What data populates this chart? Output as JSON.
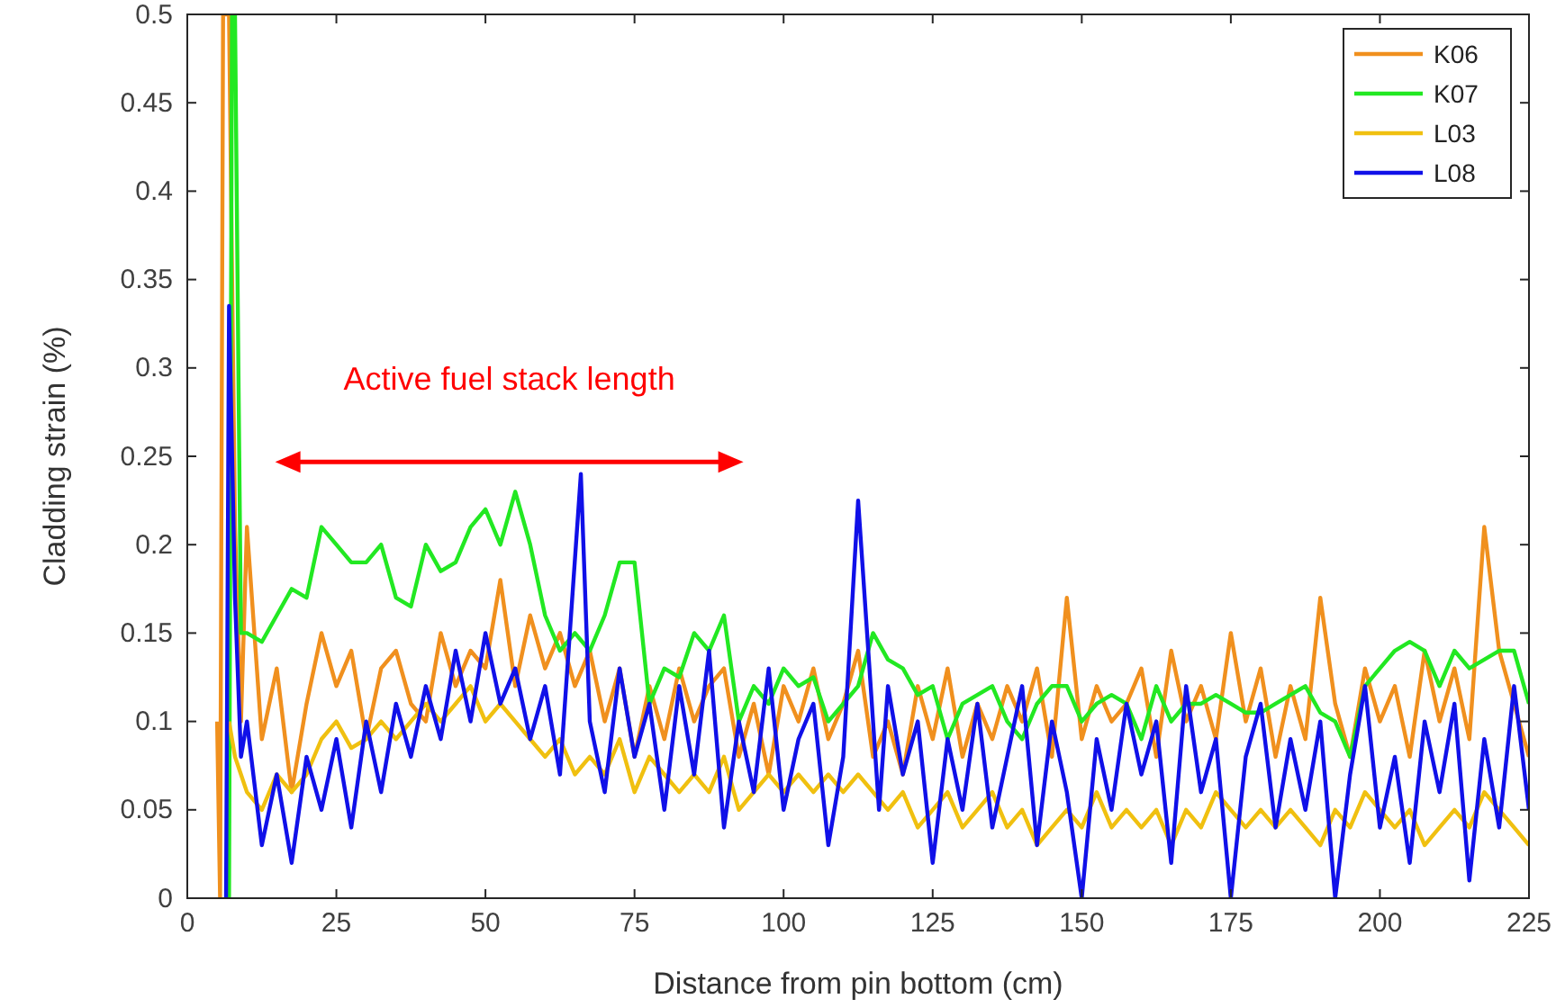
{
  "chart_data": {
    "type": "line",
    "xlabel": "Distance from pin bottom (cm)",
    "ylabel": "Cladding strain (%)",
    "xlim": [
      0,
      225
    ],
    "xticks": [
      0,
      25,
      50,
      75,
      100,
      125,
      150,
      175,
      200,
      225
    ],
    "ylim": [
      0,
      0.5
    ],
    "yticks": [
      0,
      0.05,
      0.1,
      0.15,
      0.2,
      0.25,
      0.3,
      0.35,
      0.4,
      0.45,
      0.5
    ],
    "grid": false,
    "legend": "top right",
    "line_style": "solid",
    "marker": "none",
    "annotations": [
      "Active fuel stack length"
    ],
    "series": [
      {
        "name": "K06",
        "color": "#f0901e",
        "x": [
          5,
          5.5,
          6,
          7,
          8,
          9,
          10,
          12.5,
          15,
          17.5,
          20,
          22.5,
          25,
          27.5,
          30,
          32.5,
          35,
          37.5,
          40,
          42.5,
          45,
          47.5,
          50,
          52.5,
          55,
          57.5,
          60,
          62.5,
          65,
          67.5,
          70,
          72.5,
          75,
          77.5,
          80,
          82.5,
          85,
          87.5,
          90,
          92.5,
          95,
          97.5,
          100,
          102.5,
          105,
          107.5,
          110,
          112.5,
          115,
          117.5,
          120,
          122.5,
          125,
          127.5,
          130,
          132.5,
          135,
          137.5,
          140,
          142.5,
          145,
          147.5,
          150,
          152.5,
          155,
          157.5,
          160,
          162.5,
          165,
          167.5,
          170,
          172.5,
          175,
          177.5,
          180,
          182.5,
          185,
          187.5,
          190,
          192.5,
          195,
          197.5,
          200,
          202.5,
          205,
          207.5,
          210,
          212.5,
          215,
          217.5,
          220,
          222.5,
          225
        ],
        "values": [
          0.1,
          0,
          0.5,
          0.5,
          0.21,
          0.1,
          0.21,
          0.09,
          0.13,
          0.06,
          0.11,
          0.15,
          0.12,
          0.14,
          0.09,
          0.13,
          0.14,
          0.11,
          0.1,
          0.15,
          0.12,
          0.14,
          0.13,
          0.18,
          0.12,
          0.16,
          0.13,
          0.15,
          0.12,
          0.14,
          0.1,
          0.13,
          0.08,
          0.12,
          0.09,
          0.13,
          0.1,
          0.12,
          0.13,
          0.08,
          0.11,
          0.07,
          0.12,
          0.1,
          0.13,
          0.09,
          0.11,
          0.14,
          0.08,
          0.1,
          0.07,
          0.12,
          0.09,
          0.13,
          0.08,
          0.11,
          0.09,
          0.12,
          0.1,
          0.13,
          0.08,
          0.17,
          0.09,
          0.12,
          0.1,
          0.11,
          0.13,
          0.08,
          0.14,
          0.1,
          0.12,
          0.09,
          0.15,
          0.1,
          0.13,
          0.08,
          0.12,
          0.09,
          0.17,
          0.11,
          0.08,
          0.13,
          0.1,
          0.12,
          0.08,
          0.14,
          0.1,
          0.13,
          0.09,
          0.21,
          0.14,
          0.11,
          0.08
        ]
      },
      {
        "name": "K07",
        "color": "#22e822",
        "x": [
          7,
          7.5,
          8,
          9,
          10,
          12.5,
          15,
          17.5,
          20,
          22.5,
          25,
          27.5,
          30,
          32.5,
          35,
          37.5,
          40,
          42.5,
          45,
          47.5,
          50,
          52.5,
          55,
          57.5,
          60,
          62.5,
          65,
          67.5,
          70,
          72.5,
          75,
          77.5,
          80,
          82.5,
          85,
          87.5,
          90,
          92.5,
          95,
          97.5,
          100,
          102.5,
          105,
          107.5,
          110,
          112.5,
          115,
          117.5,
          120,
          122.5,
          125,
          127.5,
          130,
          132.5,
          135,
          137.5,
          140,
          142.5,
          145,
          147.5,
          150,
          152.5,
          155,
          157.5,
          160,
          162.5,
          165,
          167.5,
          170,
          172.5,
          175,
          177.5,
          180,
          182.5,
          185,
          187.5,
          190,
          192.5,
          195,
          197.5,
          200,
          202.5,
          205,
          207.5,
          210,
          212.5,
          215,
          217.5,
          220,
          222.5,
          225
        ],
        "values": [
          0,
          0.5,
          0.5,
          0.15,
          0.15,
          0.145,
          0.16,
          0.175,
          0.17,
          0.21,
          0.2,
          0.19,
          0.19,
          0.2,
          0.17,
          0.165,
          0.2,
          0.185,
          0.19,
          0.21,
          0.22,
          0.2,
          0.23,
          0.2,
          0.16,
          0.14,
          0.15,
          0.14,
          0.16,
          0.19,
          0.19,
          0.11,
          0.13,
          0.125,
          0.15,
          0.14,
          0.16,
          0.1,
          0.12,
          0.11,
          0.13,
          0.12,
          0.125,
          0.1,
          0.11,
          0.12,
          0.15,
          0.135,
          0.13,
          0.115,
          0.12,
          0.09,
          0.11,
          0.115,
          0.12,
          0.1,
          0.09,
          0.11,
          0.12,
          0.12,
          0.1,
          0.11,
          0.115,
          0.11,
          0.09,
          0.12,
          0.1,
          0.11,
          0.11,
          0.115,
          0.11,
          0.105,
          0.105,
          0.11,
          0.115,
          0.12,
          0.105,
          0.1,
          0.08,
          0.12,
          0.13,
          0.14,
          0.145,
          0.14,
          0.12,
          0.14,
          0.13,
          0.135,
          0.14,
          0.14,
          0.11
        ]
      },
      {
        "name": "L03",
        "color": "#f0c010",
        "x": [
          7,
          8,
          9,
          10,
          12.5,
          15,
          17.5,
          20,
          22.5,
          25,
          27.5,
          30,
          32.5,
          35,
          37.5,
          40,
          42.5,
          45,
          47.5,
          50,
          52.5,
          55,
          57.5,
          60,
          62.5,
          65,
          67.5,
          70,
          72.5,
          75,
          77.5,
          80,
          82.5,
          85,
          87.5,
          90,
          92.5,
          95,
          97.5,
          100,
          102.5,
          105,
          107.5,
          110,
          112.5,
          115,
          117.5,
          120,
          122.5,
          125,
          127.5,
          130,
          132.5,
          135,
          137.5,
          140,
          142.5,
          145,
          147.5,
          150,
          152.5,
          155,
          157.5,
          160,
          162.5,
          165,
          167.5,
          170,
          172.5,
          175,
          177.5,
          180,
          182.5,
          185,
          187.5,
          190,
          192.5,
          195,
          197.5,
          200,
          202.5,
          205,
          207.5,
          210,
          212.5,
          215,
          217.5,
          220,
          222.5,
          225
        ],
        "values": [
          0.1,
          0.08,
          0.07,
          0.06,
          0.05,
          0.07,
          0.06,
          0.07,
          0.09,
          0.1,
          0.085,
          0.09,
          0.1,
          0.09,
          0.1,
          0.11,
          0.1,
          0.11,
          0.12,
          0.1,
          0.11,
          0.1,
          0.09,
          0.08,
          0.09,
          0.07,
          0.08,
          0.07,
          0.09,
          0.06,
          0.08,
          0.07,
          0.06,
          0.07,
          0.06,
          0.08,
          0.05,
          0.06,
          0.07,
          0.06,
          0.07,
          0.06,
          0.07,
          0.06,
          0.07,
          0.06,
          0.05,
          0.06,
          0.04,
          0.05,
          0.06,
          0.04,
          0.05,
          0.06,
          0.04,
          0.05,
          0.03,
          0.04,
          0.05,
          0.04,
          0.06,
          0.04,
          0.05,
          0.04,
          0.05,
          0.03,
          0.05,
          0.04,
          0.06,
          0.05,
          0.04,
          0.05,
          0.04,
          0.05,
          0.04,
          0.03,
          0.05,
          0.04,
          0.06,
          0.05,
          0.04,
          0.05,
          0.03,
          0.04,
          0.05,
          0.04,
          0.06,
          0.05,
          0.04,
          0.03
        ]
      },
      {
        "name": "L08",
        "color": "#1010e8",
        "x": [
          6.5,
          7,
          8,
          9,
          10,
          12.5,
          15,
          17.5,
          20,
          22.5,
          25,
          27.5,
          30,
          32.5,
          35,
          37.5,
          40,
          42.5,
          45,
          47.5,
          50,
          52.5,
          55,
          57.5,
          60,
          62.5,
          66,
          67.5,
          70,
          72.5,
          75,
          77.5,
          80,
          82.5,
          85,
          87.5,
          90,
          92.5,
          95,
          97.5,
          100,
          102.5,
          105,
          107.5,
          110,
          112.5,
          116,
          117.5,
          120,
          122.5,
          125,
          127.5,
          130,
          132.5,
          135,
          137.5,
          140,
          142.5,
          145,
          147.5,
          150,
          152.5,
          155,
          157.5,
          160,
          162.5,
          165,
          167.5,
          170,
          172.5,
          175,
          177.5,
          180,
          182.5,
          185,
          187.5,
          190,
          192.5,
          195,
          197.5,
          200,
          202.5,
          205,
          207.5,
          210,
          212.5,
          215,
          217.5,
          220,
          222.5,
          225
        ],
        "values": [
          0,
          0.335,
          0.17,
          0.08,
          0.1,
          0.03,
          0.07,
          0.02,
          0.08,
          0.05,
          0.09,
          0.04,
          0.1,
          0.06,
          0.11,
          0.08,
          0.12,
          0.09,
          0.14,
          0.1,
          0.15,
          0.11,
          0.13,
          0.09,
          0.12,
          0.07,
          0.24,
          0.1,
          0.06,
          0.13,
          0.08,
          0.11,
          0.05,
          0.12,
          0.07,
          0.14,
          0.04,
          0.1,
          0.06,
          0.13,
          0.05,
          0.09,
          0.11,
          0.03,
          0.08,
          0.225,
          0.05,
          0.12,
          0.07,
          0.1,
          0.02,
          0.09,
          0.05,
          0.11,
          0.04,
          0.08,
          0.12,
          0.03,
          0.1,
          0.06,
          0,
          0.09,
          0.05,
          0.11,
          0.07,
          0.1,
          0.02,
          0.12,
          0.06,
          0.09,
          0,
          0.08,
          0.11,
          0.04,
          0.09,
          0.05,
          0.1,
          0,
          0.07,
          0.12,
          0.04,
          0.08,
          0.02,
          0.1,
          0.06,
          0.11,
          0.01,
          0.09,
          0.04,
          0.12,
          0.05
        ]
      }
    ]
  }
}
